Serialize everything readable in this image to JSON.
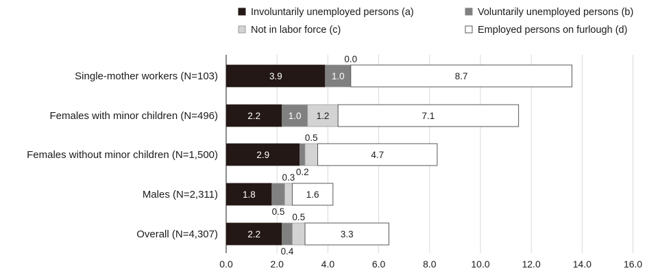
{
  "chart_data": {
    "type": "bar",
    "orientation": "horizontal",
    "stacked": true,
    "categories": [
      "Single-mother workers (N=103)",
      "Females with minor children (N=496)",
      "Females without minor children (N=1,500)",
      "Males (N=2,311)",
      "Overall (N=4,307)"
    ],
    "series": [
      {
        "name": "Involuntarily unemployed persons (a)",
        "values": [
          3.9,
          2.2,
          2.9,
          1.8,
          2.2
        ],
        "color": "#231815"
      },
      {
        "name": "Voluntarily unemployed persons (b)",
        "values": [
          1.0,
          1.0,
          0.2,
          0.5,
          0.4
        ],
        "color": "#808080"
      },
      {
        "name": "Not in labor force (c)",
        "values": [
          0.0,
          1.2,
          0.5,
          0.3,
          0.5
        ],
        "color": "#d3d3d3"
      },
      {
        "name": "Employed persons on furlough (d)",
        "values": [
          8.7,
          7.1,
          4.7,
          1.6,
          3.3
        ],
        "color": "#ffffff"
      }
    ],
    "data_labels": [
      [
        "3.9",
        "1.0",
        "0.0",
        "8.7"
      ],
      [
        "2.2",
        "1.0",
        "1.2",
        "7.1"
      ],
      [
        "2.9",
        "0.2",
        "0.5",
        "4.7"
      ],
      [
        "1.8",
        "0.5",
        "0.3",
        "1.6"
      ],
      [
        "2.2",
        "0.4",
        "0.5",
        "3.3"
      ]
    ],
    "xticks": [
      "0.0",
      "2.0",
      "4.0",
      "6.0",
      "8.0",
      "10.0",
      "12.0",
      "14.0",
      "16.0"
    ],
    "xlim": [
      0,
      16
    ],
    "grid": "vertical",
    "legend": "top",
    "title": "",
    "xlabel": "",
    "ylabel": ""
  }
}
